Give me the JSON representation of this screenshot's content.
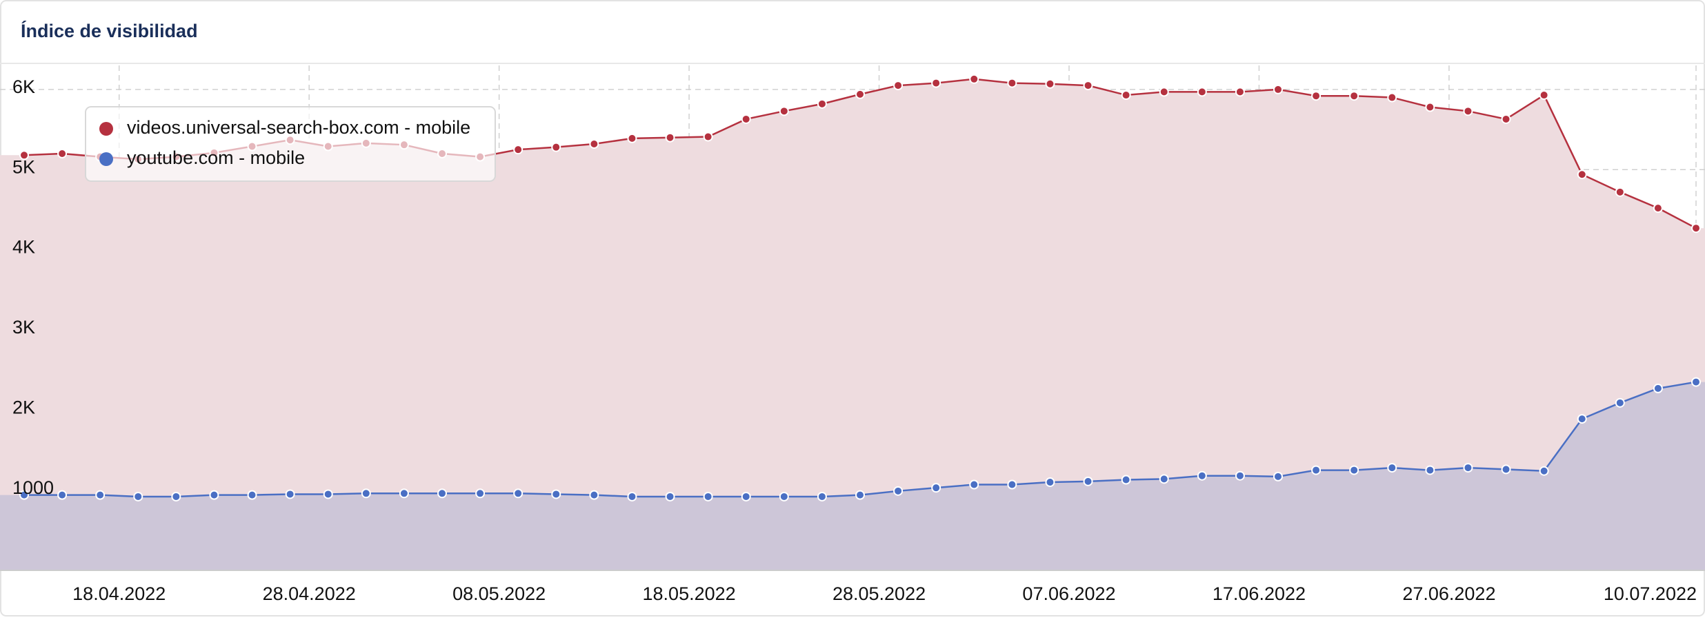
{
  "chart_data": {
    "type": "line",
    "title": "Índice de visibilidad",
    "x": [
      "13.04.2022",
      "15.04.2022",
      "17.04.2022",
      "19.04.2022",
      "21.04.2022",
      "23.04.2022",
      "25.04.2022",
      "27.04.2022",
      "29.04.2022",
      "01.05.2022",
      "03.05.2022",
      "05.05.2022",
      "07.05.2022",
      "09.05.2022",
      "11.05.2022",
      "13.05.2022",
      "15.05.2022",
      "17.05.2022",
      "19.05.2022",
      "21.05.2022",
      "23.05.2022",
      "25.05.2022",
      "27.05.2022",
      "29.05.2022",
      "31.05.2022",
      "02.06.2022",
      "04.06.2022",
      "06.06.2022",
      "08.06.2022",
      "10.06.2022",
      "12.06.2022",
      "14.06.2022",
      "16.06.2022",
      "18.06.2022",
      "20.06.2022",
      "22.06.2022",
      "24.06.2022",
      "26.06.2022",
      "28.06.2022",
      "30.06.2022",
      "02.07.2022",
      "04.07.2022",
      "06.07.2022",
      "08.07.2022",
      "10.07.2022"
    ],
    "series": [
      {
        "name": "videos.universal-search-box.com - mobile",
        "color": "#b5313f",
        "fill": "#eedcdf",
        "values": [
          5180,
          5200,
          5160,
          5130,
          5160,
          5210,
          5290,
          5370,
          5290,
          5330,
          5310,
          5200,
          5160,
          5250,
          5280,
          5320,
          5390,
          5400,
          5410,
          5630,
          5730,
          5820,
          5940,
          6050,
          6080,
          6130,
          6080,
          6070,
          6050,
          5930,
          5970,
          5970,
          5970,
          6000,
          5920,
          5920,
          5900,
          5780,
          5730,
          5630,
          5930,
          4940,
          4720,
          4520,
          4270
        ]
      },
      {
        "name": "youtube.com - mobile",
        "color": "#4a6fc4",
        "fill": "#cdc6d8",
        "values": [
          940,
          940,
          940,
          920,
          920,
          940,
          940,
          950,
          950,
          960,
          960,
          960,
          960,
          960,
          950,
          940,
          920,
          920,
          920,
          920,
          920,
          920,
          940,
          990,
          1030,
          1070,
          1070,
          1100,
          1110,
          1130,
          1140,
          1180,
          1180,
          1170,
          1250,
          1250,
          1280,
          1250,
          1280,
          1260,
          1240,
          1890,
          2090,
          2270,
          2350
        ]
      }
    ],
    "xlim": [
      "13.04.2022",
      "10.07.2022"
    ],
    "xticks": [
      "18.04.2022",
      "28.04.2022",
      "08.05.2022",
      "18.05.2022",
      "28.05.2022",
      "07.06.2022",
      "17.06.2022",
      "27.06.2022",
      "10.07.2022"
    ],
    "ylim": [
      0,
      6300
    ],
    "yticks": [
      {
        "value": 1000,
        "label": "1000"
      },
      {
        "value": 2000,
        "label": "2K"
      },
      {
        "value": 3000,
        "label": "3K"
      },
      {
        "value": 4000,
        "label": "4K"
      },
      {
        "value": 5000,
        "label": "5K"
      },
      {
        "value": 6000,
        "label": "6K"
      }
    ],
    "grid": true
  }
}
